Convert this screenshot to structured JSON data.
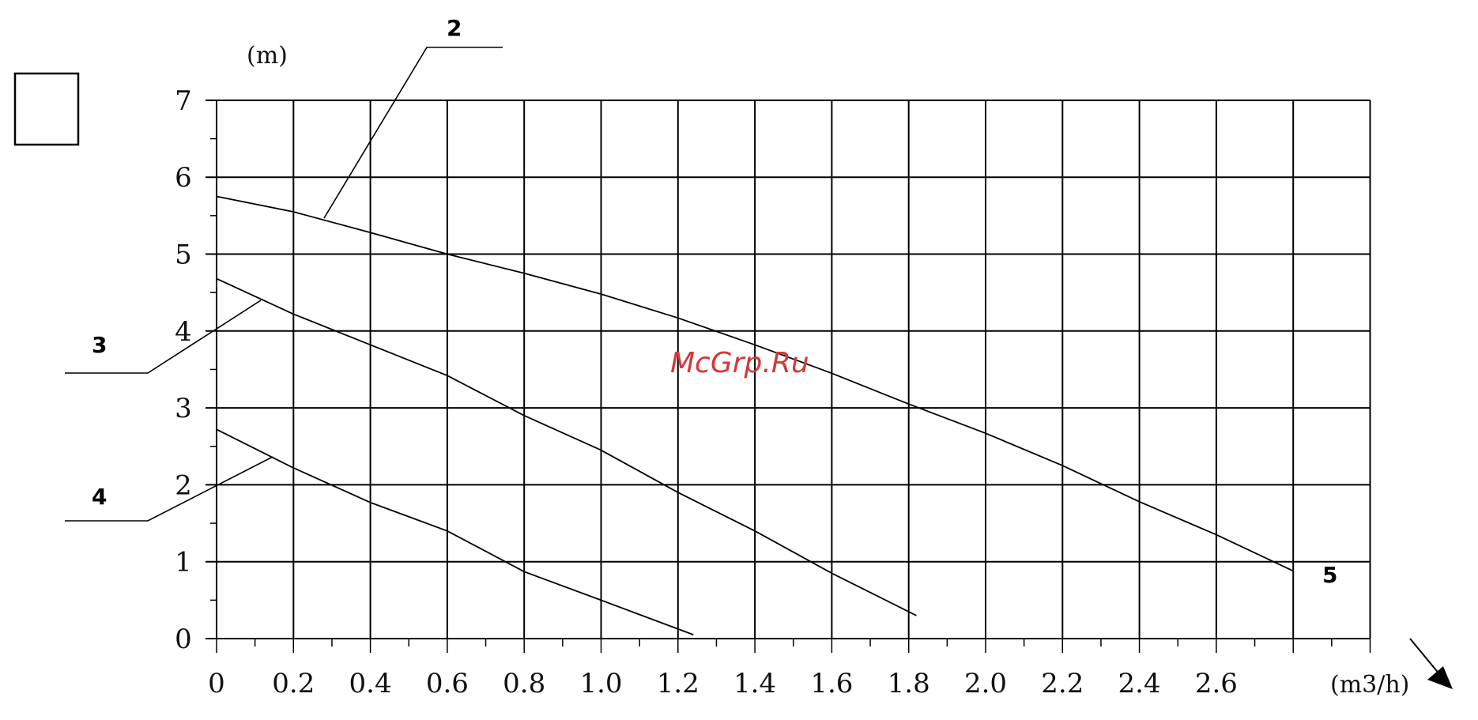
{
  "chart_data": {
    "type": "line",
    "xlabel": "(m3/h)",
    "ylabel": "(m)",
    "xlim": [
      0,
      3.0
    ],
    "ylim": [
      0,
      7
    ],
    "x_ticks": [
      "0",
      "0.2",
      "0.4",
      "0.6",
      "0.8",
      "1.0",
      "1.2",
      "1.4",
      "1.6",
      "1.8",
      "2.0",
      "2.2",
      "2.4",
      "2.6"
    ],
    "y_ticks": [
      "0",
      "1",
      "2",
      "3",
      "4",
      "5",
      "6",
      "7"
    ],
    "grid": true,
    "series": [
      {
        "name": "5",
        "x": [
          0,
          0.2,
          0.4,
          0.6,
          0.8,
          1.0,
          1.2,
          1.4,
          1.6,
          1.8,
          2.0,
          2.2,
          2.4,
          2.6,
          2.8
        ],
        "y": [
          5.75,
          5.55,
          5.28,
          5.0,
          4.75,
          4.48,
          4.17,
          3.82,
          3.45,
          3.05,
          2.67,
          2.25,
          1.78,
          1.35,
          0.88
        ]
      },
      {
        "name": "3",
        "x": [
          0,
          0.2,
          0.4,
          0.6,
          0.8,
          1.0,
          1.2,
          1.4,
          1.6,
          1.82
        ],
        "y": [
          4.68,
          4.22,
          3.82,
          3.42,
          2.9,
          2.45,
          1.9,
          1.4,
          0.85,
          0.3
        ]
      },
      {
        "name": "4",
        "x": [
          0,
          0.2,
          0.4,
          0.6,
          0.8,
          1.0,
          1.24
        ],
        "y": [
          2.72,
          2.22,
          1.77,
          1.4,
          0.87,
          0.5,
          0.05
        ]
      }
    ],
    "annotations": [
      "2",
      "3",
      "4",
      "5"
    ]
  },
  "watermark": "McGrp.Ru"
}
